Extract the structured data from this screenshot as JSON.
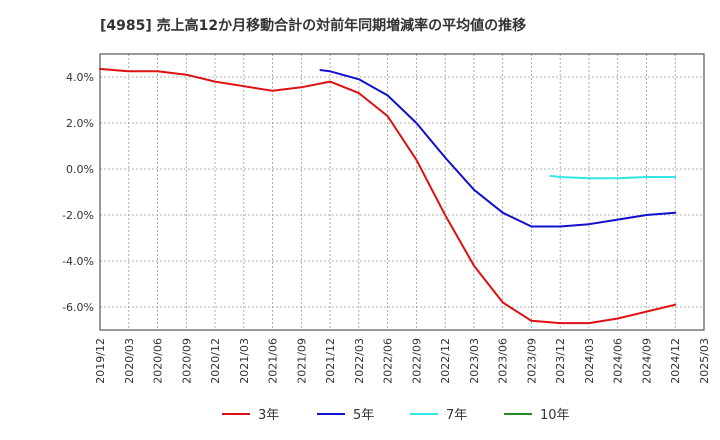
{
  "chart_data": {
    "type": "line",
    "title": "[4985]  売上高12か月移動合計の対前年同期増減率の平均値の推移",
    "xlabel": "",
    "ylabel": "",
    "x_ticks": [
      "2019/12",
      "2020/03",
      "2020/06",
      "2020/09",
      "2020/12",
      "2021/03",
      "2021/06",
      "2021/09",
      "2021/12",
      "2022/03",
      "2022/06",
      "2022/09",
      "2022/12",
      "2023/03",
      "2023/06",
      "2023/09",
      "2023/12",
      "2024/03",
      "2024/06",
      "2024/09",
      "2024/12",
      "2025/03"
    ],
    "y_ticks": [
      "4.0%",
      "2.0%",
      "0.0%",
      "-2.0%",
      "-4.0%",
      "-6.0%"
    ],
    "y_tick_values": [
      4,
      2,
      0,
      -2,
      -4,
      -6
    ],
    "ylim": [
      -7,
      5
    ],
    "grid": true,
    "legend_position": "bottom",
    "series": [
      {
        "name": "3年",
        "color": "#dd1111",
        "x": [
          "2019/12",
          "2020/03",
          "2020/06",
          "2020/09",
          "2020/12",
          "2021/03",
          "2021/06",
          "2021/09",
          "2021/12",
          "2022/03",
          "2022/06",
          "2022/09",
          "2022/12",
          "2023/03",
          "2023/06",
          "2023/09",
          "2023/12",
          "2024/03",
          "2024/06",
          "2024/09",
          "2024/12"
        ],
        "values": [
          4.35,
          4.25,
          4.25,
          4.1,
          3.8,
          3.6,
          3.4,
          3.55,
          3.8,
          3.3,
          2.3,
          0.4,
          -2.0,
          -4.2,
          -5.8,
          -6.6,
          -6.7,
          -6.7,
          -6.5,
          -6.2,
          -5.9
        ]
      },
      {
        "name": "5年",
        "color": "#1111cc",
        "x": [
          "2021/11",
          "2021/12",
          "2022/03",
          "2022/06",
          "2022/09",
          "2022/12",
          "2023/03",
          "2023/06",
          "2023/09",
          "2023/12",
          "2024/03",
          "2024/06",
          "2024/09",
          "2024/12"
        ],
        "values": [
          4.3,
          4.25,
          3.9,
          3.2,
          2.0,
          0.5,
          -0.9,
          -1.9,
          -2.5,
          -2.5,
          -2.4,
          -2.2,
          -2.0,
          -1.9
        ]
      },
      {
        "name": "7年",
        "color": "#33e6e6",
        "x": [
          "2023/11",
          "2023/12",
          "2024/03",
          "2024/06",
          "2024/09",
          "2024/12"
        ],
        "values": [
          -0.3,
          -0.35,
          -0.4,
          -0.4,
          -0.35,
          -0.35
        ]
      },
      {
        "name": "10年",
        "color": "#228b22",
        "x": [],
        "values": []
      }
    ]
  }
}
